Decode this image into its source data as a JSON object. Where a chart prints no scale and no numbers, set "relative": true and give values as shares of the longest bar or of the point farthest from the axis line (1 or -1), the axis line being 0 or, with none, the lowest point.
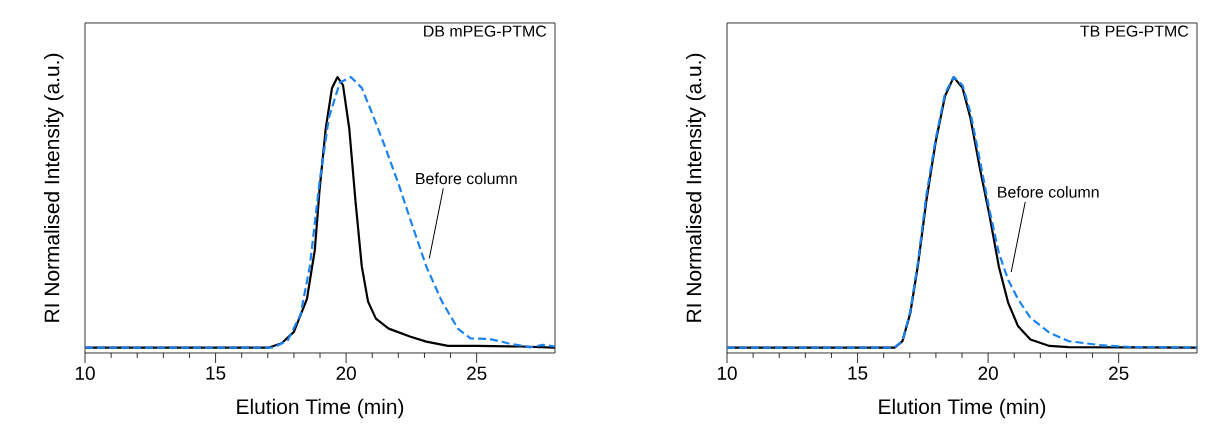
{
  "chart_data": [
    {
      "type": "line",
      "title": "DB mPEG-PTMC",
      "xlabel": "Elution Time (min)",
      "ylabel": "RI Normalised Intensity (a.u.)",
      "relative": true,
      "xlim": [
        10,
        28
      ],
      "xticks": [
        10,
        15,
        20,
        25
      ],
      "tick_labels": "x",
      "legend": false,
      "marker": "none",
      "series": [
        {
          "color": "#000000",
          "line_style": "solid",
          "x": [
            10,
            17.05,
            17.53,
            18.0,
            18.5,
            18.8,
            18.98,
            19.22,
            19.46,
            19.67,
            19.88,
            20.12,
            20.36,
            20.6,
            20.84,
            21.14,
            21.63,
            22.47,
            23.07,
            23.9,
            25,
            26.7,
            28
          ],
          "values": [
            0,
            0,
            0.016,
            0.058,
            0.18,
            0.36,
            0.58,
            0.81,
            0.96,
            1,
            0.97,
            0.81,
            0.54,
            0.3,
            0.17,
            0.107,
            0.07,
            0.04,
            0.022,
            0.006,
            0.006,
            0.004,
            0
          ]
        },
        {
          "name": "Before column",
          "color": "#1a83f0",
          "line_style": "dashed",
          "x": [
            10,
            17.23,
            17.77,
            18.25,
            18.61,
            18.98,
            19.34,
            19.76,
            20.18,
            20.6,
            21.02,
            21.5,
            21.99,
            22.47,
            23.07,
            23.67,
            24.28,
            24.76,
            25.48,
            26.2,
            27.05,
            27.53,
            28
          ],
          "values": [
            0,
            0,
            0.028,
            0.12,
            0.3,
            0.61,
            0.85,
            0.98,
            1,
            0.96,
            0.86,
            0.74,
            0.61,
            0.47,
            0.3,
            0.17,
            0.07,
            0.034,
            0.032,
            0.016,
            0.001,
            0.01,
            0.004
          ]
        }
      ]
    },
    {
      "type": "line",
      "title": "TB PEG-PTMC",
      "xlabel": "Elution Time (min)",
      "ylabel": "RI Normalised Intensity (a.u.)",
      "relative": true,
      "xlim": [
        10,
        28
      ],
      "xticks": [
        10,
        15,
        20,
        25
      ],
      "tick_labels": "x",
      "legend": false,
      "marker": "none",
      "series": [
        {
          "color": "#000000",
          "line_style": "solid",
          "x": [
            10,
            16.42,
            16.72,
            17.02,
            17.32,
            17.63,
            17.99,
            18.35,
            18.68,
            19.02,
            19.32,
            19.69,
            20.05,
            20.41,
            20.77,
            21.14,
            21.62,
            22.35,
            23.07,
            28
          ],
          "values": [
            0,
            0,
            0.024,
            0.128,
            0.31,
            0.54,
            0.76,
            0.93,
            1,
            0.96,
            0.85,
            0.66,
            0.49,
            0.3,
            0.165,
            0.08,
            0.03,
            0.006,
            0.002,
            0
          ]
        },
        {
          "name": "Before column",
          "color": "#1a83f0",
          "line_style": "dashed",
          "x": [
            10,
            16.42,
            16.72,
            17.02,
            17.32,
            17.63,
            17.99,
            18.35,
            18.68,
            19.02,
            19.32,
            19.69,
            20.05,
            20.41,
            20.77,
            21.14,
            21.62,
            22.35,
            23.07,
            24.29,
            25.5,
            28
          ],
          "values": [
            0,
            0,
            0.024,
            0.134,
            0.32,
            0.56,
            0.77,
            0.94,
            1,
            0.97,
            0.87,
            0.69,
            0.51,
            0.35,
            0.25,
            0.18,
            0.11,
            0.055,
            0.024,
            0.009,
            0.002,
            0
          ]
        }
      ]
    }
  ]
}
